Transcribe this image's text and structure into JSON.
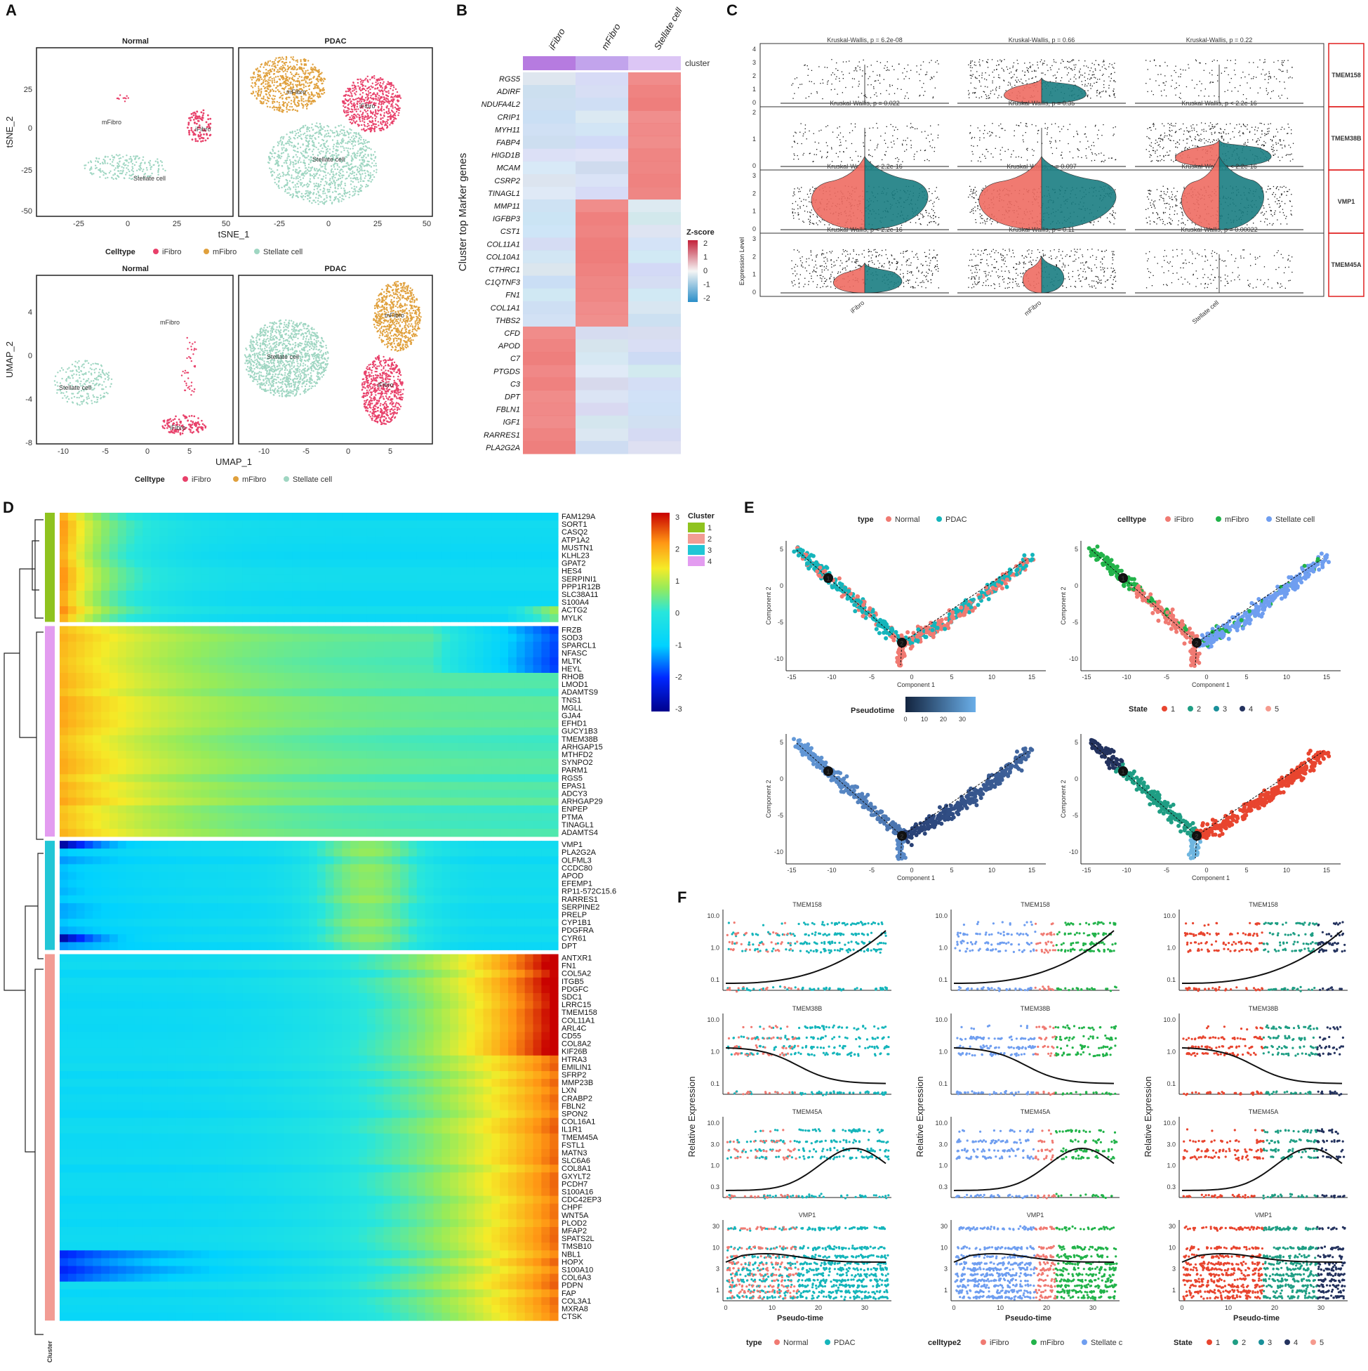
{
  "colors": {
    "iFibro": "#e8406a",
    "mFibro": "#e0a03c",
    "Stellate": "#9fd6c2",
    "Normal": "#f07a72",
    "PDAC": "#15b5bb",
    "split_red": "#ee6b62",
    "split_teal": "#1a7d82",
    "heat_hi": "#ee7c7a",
    "heat_lo": "#cfdff0",
    "cl1": "#8fc31f",
    "cl2": "#f29c94",
    "cl3": "#22c6d6",
    "cl4": "#e39cf0",
    "state1": "#e8452f",
    "state2": "#1f9e84",
    "state3": "#19909a",
    "state4": "#23325e",
    "state5": "#f59a8e",
    "ctE_i": "#f07a72",
    "ctE_m": "#22b34a",
    "ctE_s": "#6f9ef0"
  },
  "panel_labels": [
    "A",
    "B",
    "C",
    "D",
    "E",
    "F"
  ],
  "A": {
    "tsne": {
      "facets": [
        "Normal",
        "PDAC"
      ],
      "xlabel": "tSNE_1",
      "ylabel": "tSNE_2",
      "xticks": [
        "-25",
        "0",
        "25",
        "50"
      ],
      "yticks": [
        "25",
        "0",
        "-25",
        "-50"
      ],
      "labels": {
        "mFibro_n": "mFibro",
        "iFibro_n": "iFibro",
        "stellate_n": "Stellate cell",
        "mFibro_p": "mFibro",
        "iFibro_p": "iFibro",
        "stellate_p": "Stellate cell"
      }
    },
    "umap": {
      "facets": [
        "Normal",
        "PDAC"
      ],
      "xlabel": "UMAP_1",
      "ylabel": "UMAP_2",
      "xticks": [
        "-10",
        "-5",
        "0",
        "5"
      ],
      "yticks": [
        "4",
        "0",
        "-4",
        "-8"
      ],
      "labels": {
        "mFibro_n": "mFibro",
        "iFibro_n": "iFibro",
        "stellate_n": "Stellate cell",
        "mFibro_p": "mFibro",
        "iFibro_p": "iFibro",
        "stellate_p": "Stellate cell"
      }
    },
    "legend": {
      "title": "Celltype",
      "items": [
        "iFibro",
        "mFibro",
        "Stellate cell"
      ]
    }
  },
  "B": {
    "columns": [
      "iFibro",
      "mFibro",
      "Stellate cell"
    ],
    "cluster_label": "cluster",
    "ylabel": "Cluster top Marker genes",
    "genes": [
      "RGS5",
      "ADIRF",
      "NDUFA4L2",
      "CRIP1",
      "MYH11",
      "FABP4",
      "HIGD1B",
      "MCAM",
      "CSRP2",
      "TINAGL1",
      "MMP11",
      "IGFBP3",
      "CST1",
      "COL11A1",
      "COL10A1",
      "CTHRC1",
      "C1QTNF3",
      "FN1",
      "COL1A1",
      "THBS2",
      "CFD",
      "APOD",
      "C7",
      "PTGDS",
      "C3",
      "DPT",
      "FBLN1",
      "IGF1",
      "RARRES1",
      "PLA2G2A"
    ],
    "legend": {
      "title": "Z-score",
      "ticks": [
        "2",
        "1",
        "0",
        "-1",
        "-2"
      ]
    }
  },
  "C": {
    "ylabel": "Expression Level",
    "xcats": [
      "iFibro",
      "mFibro",
      "Stellate cell"
    ],
    "rows": [
      {
        "gene": "TMEM158",
        "pvals": [
          "Kruskal-Wallis, p = 6.2e-08",
          "Kruskal-Wallis, p = 0.66",
          "Kruskal-Wallis, p = 0.22"
        ],
        "yticks": [
          "4",
          "3",
          "2",
          "1",
          "0"
        ]
      },
      {
        "gene": "TMEM38B",
        "pvals": [
          "Kruskal-Wallis, p = 0.022",
          "Kruskal-Wallis, p = 0.35",
          "Kruskal-Wallis, p < 2.2e-16"
        ],
        "yticks": [
          "2",
          "1",
          "0"
        ]
      },
      {
        "gene": "VMP1",
        "pvals": [
          "Kruskal-Wallis, p < 2.2e-16",
          "Kruskal-Wallis, p = 0.097",
          "Kruskal-Wallis, p < 2.2e-16"
        ],
        "yticks": [
          "3",
          "2",
          "1",
          "0"
        ]
      },
      {
        "gene": "TMEM45A",
        "pvals": [
          "Kruskal-Wallis, p < 2.2e-16",
          "Kruskal-Wallis, p = 0.11",
          "Kruskal-Wallis, p = 0.00022"
        ],
        "yticks": [
          "3",
          "2",
          "1",
          "0"
        ]
      }
    ]
  },
  "D": {
    "legend": {
      "ticks": [
        "3",
        "2",
        "1",
        "0",
        "-1",
        "-2",
        "-3"
      ],
      "cluster_title": "Cluster",
      "cluster_items": [
        "1",
        "2",
        "3",
        "4"
      ]
    },
    "row_annot_label": "Cluster",
    "clusters": [
      {
        "id": "1",
        "genes": [
          "FAM129A",
          "SORT1",
          "CASQ2",
          "ATP1A2",
          "MUSTN1",
          "KLHL23",
          "GPAT2",
          "HES4",
          "SERPINI1",
          "PPP1R12B",
          "SLC38A11",
          "S100A4",
          "ACTG2",
          "MYLK"
        ]
      },
      {
        "id": "4",
        "genes": [
          "FRZB",
          "SOD3",
          "SPARCL1",
          "NFASC",
          "MLTK",
          "HEYL",
          "RHOB",
          "LMOD1",
          "ADAMTS9",
          "TNS1",
          "MGLL",
          "GJA4",
          "EFHD1",
          "GUCY1B3",
          "TMEM38B",
          "ARHGAP15",
          "MTHFD2",
          "SYNPO2",
          "PARM1",
          "RGS5",
          "EPAS1",
          "ADCY3",
          "ARHGAP29",
          "ENPEP",
          "PTMA",
          "TINAGL1",
          "ADAMTS4"
        ]
      },
      {
        "id": "3",
        "genes": [
          "VMP1",
          "PLA2G2A",
          "OLFML3",
          "CCDC80",
          "APOD",
          "EFEMP1",
          "RP11-572C15.6",
          "RARRES1",
          "SERPINE2",
          "PRELP",
          "CYP1B1",
          "PDGFRA",
          "CYR61",
          "DPT"
        ]
      },
      {
        "id": "2",
        "genes": [
          "ANTXR1",
          "FN1",
          "COL5A2",
          "ITGB5",
          "PDGFC",
          "SDC1",
          "LRRC15",
          "TMEM158",
          "COL11A1",
          "ARL4C",
          "CD55",
          "COL8A2",
          "KIF26B",
          "HTRA3",
          "EMILIN1",
          "SFRP2",
          "MMP23B",
          "LXN",
          "CRABP2",
          "FBLN2",
          "SPON2",
          "COL16A1",
          "IL1R1",
          "TMEM45A",
          "FSTL1",
          "MATN3",
          "SLC6A6",
          "COL8A1",
          "GXYLT2",
          "PCDH7",
          "S100A16",
          "CDC42EP3",
          "CHPF",
          "WNT5A",
          "PLOD2",
          "MFAP2",
          "SPATS2L",
          "TMSB10",
          "NBL1",
          "HOPX",
          "S100A10",
          "COL6A3",
          "PDPN",
          "FAP",
          "COL3A1",
          "MXRA8",
          "CTSK"
        ]
      }
    ]
  },
  "E": {
    "legend_type": {
      "title": "type",
      "items": [
        "Normal",
        "PDAC"
      ]
    },
    "legend_celltype": {
      "title": "celltype",
      "items": [
        "iFibro",
        "mFibro",
        "Stellate cell"
      ]
    },
    "legend_pseudotime": {
      "title": "Pseudotime",
      "ticks": [
        "0",
        "10",
        "20",
        "30"
      ]
    },
    "legend_state": {
      "title": "State",
      "items": [
        "1",
        "2",
        "3",
        "4",
        "5"
      ]
    },
    "xlabel": "Component 1",
    "ylabel": "Component 2",
    "xticks": [
      "-15",
      "-10",
      "-5",
      "0",
      "5",
      "10",
      "15"
    ],
    "yticks": [
      "5",
      "0",
      "-5",
      "-10"
    ],
    "branch_nodes": [
      "1",
      "2"
    ]
  },
  "F": {
    "ylabel": "Relative Expression",
    "xlabel": "Pseudo-time",
    "xticks": [
      "0",
      "10",
      "20",
      "30"
    ],
    "rows": [
      {
        "gene": "TMEM158",
        "yticks": [
          "10.0",
          "1.0",
          "0.1"
        ],
        "trend": "up"
      },
      {
        "gene": "TMEM38B",
        "yticks": [
          "10.0",
          "1.0",
          "0.1"
        ],
        "trend": "down"
      },
      {
        "gene": "TMEM45A",
        "yticks": [
          "10.0",
          "3.0",
          "1.0",
          "0.3"
        ],
        "trend": "hump"
      },
      {
        "gene": "VMP1",
        "yticks": [
          "30",
          "10",
          "3",
          "1"
        ],
        "trend": "flat"
      }
    ],
    "legends": [
      {
        "title": "type",
        "items": [
          "Normal",
          "PDAC"
        ]
      },
      {
        "title": "celltype2",
        "items": [
          "iFibro",
          "mFibro",
          "Stellate c"
        ]
      },
      {
        "title": "State",
        "items": [
          "1",
          "2",
          "3",
          "4",
          "5"
        ]
      }
    ]
  }
}
